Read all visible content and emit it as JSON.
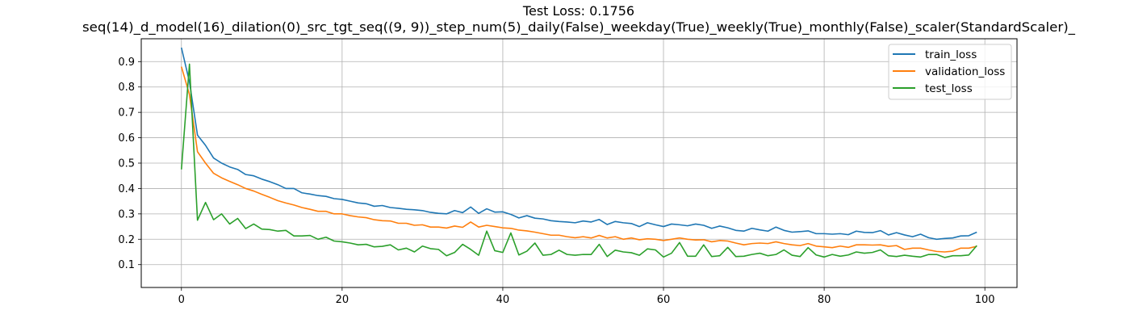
{
  "chart_data": {
    "type": "line",
    "title": "Test Loss: 0.1756",
    "subtitle": "seq(14)_d_model(16)_dilation(0)_src_tgt_seq((9, 9))_step_num(5)_daily(False)_weekday(True)_weekly(True)_monthly(False)_scaler(StandardScaler)_",
    "xlabel": "",
    "ylabel": "",
    "xlim": [
      -5,
      104
    ],
    "ylim": [
      0.01,
      0.99
    ],
    "xticks": [
      0,
      20,
      40,
      60,
      80,
      100
    ],
    "yticks": [
      0.1,
      0.2,
      0.3,
      0.4,
      0.5,
      0.6,
      0.7,
      0.8,
      0.9
    ],
    "grid": true,
    "legend_position": "top-right",
    "series": [
      {
        "name": "train_loss",
        "color": "#1f77b4",
        "values": [
          0.955,
          0.82,
          0.61,
          0.57,
          0.52,
          0.5,
          0.485,
          0.475,
          0.455,
          0.45,
          0.437,
          0.427,
          0.415,
          0.4,
          0.4,
          0.383,
          0.378,
          0.372,
          0.369,
          0.36,
          0.357,
          0.35,
          0.343,
          0.34,
          0.33,
          0.333,
          0.325,
          0.322,
          0.318,
          0.316,
          0.313,
          0.306,
          0.302,
          0.3,
          0.313,
          0.305,
          0.327,
          0.302,
          0.32,
          0.307,
          0.308,
          0.298,
          0.284,
          0.293,
          0.283,
          0.28,
          0.273,
          0.27,
          0.268,
          0.265,
          0.272,
          0.268,
          0.278,
          0.258,
          0.27,
          0.265,
          0.262,
          0.25,
          0.265,
          0.257,
          0.25,
          0.26,
          0.257,
          0.253,
          0.26,
          0.255,
          0.243,
          0.252,
          0.245,
          0.235,
          0.232,
          0.243,
          0.237,
          0.232,
          0.248,
          0.235,
          0.228,
          0.23,
          0.233,
          0.222,
          0.222,
          0.22,
          0.222,
          0.218,
          0.232,
          0.227,
          0.226,
          0.234,
          0.217,
          0.226,
          0.217,
          0.21,
          0.22,
          0.206,
          0.2,
          0.203,
          0.205,
          0.213,
          0.214,
          0.228
        ]
      },
      {
        "name": "validation_loss",
        "color": "#ff7f0e",
        "values": [
          0.88,
          0.77,
          0.545,
          0.5,
          0.46,
          0.442,
          0.428,
          0.415,
          0.4,
          0.39,
          0.377,
          0.365,
          0.352,
          0.343,
          0.335,
          0.325,
          0.318,
          0.31,
          0.31,
          0.3,
          0.3,
          0.293,
          0.288,
          0.285,
          0.277,
          0.273,
          0.272,
          0.263,
          0.263,
          0.255,
          0.257,
          0.248,
          0.248,
          0.244,
          0.252,
          0.247,
          0.268,
          0.248,
          0.255,
          0.25,
          0.245,
          0.243,
          0.236,
          0.233,
          0.228,
          0.222,
          0.216,
          0.216,
          0.21,
          0.206,
          0.21,
          0.205,
          0.215,
          0.205,
          0.21,
          0.2,
          0.205,
          0.198,
          0.202,
          0.2,
          0.195,
          0.2,
          0.205,
          0.2,
          0.197,
          0.198,
          0.19,
          0.195,
          0.193,
          0.185,
          0.178,
          0.183,
          0.185,
          0.183,
          0.19,
          0.183,
          0.178,
          0.175,
          0.183,
          0.173,
          0.17,
          0.167,
          0.173,
          0.168,
          0.178,
          0.178,
          0.177,
          0.178,
          0.172,
          0.175,
          0.16,
          0.165,
          0.165,
          0.158,
          0.152,
          0.15,
          0.153,
          0.165,
          0.165,
          0.172
        ]
      },
      {
        "name": "test_loss",
        "color": "#2ca02c",
        "values": [
          0.475,
          0.89,
          0.275,
          0.345,
          0.277,
          0.3,
          0.26,
          0.282,
          0.242,
          0.26,
          0.24,
          0.238,
          0.232,
          0.235,
          0.213,
          0.213,
          0.215,
          0.2,
          0.208,
          0.193,
          0.19,
          0.185,
          0.178,
          0.18,
          0.17,
          0.172,
          0.178,
          0.158,
          0.165,
          0.15,
          0.173,
          0.163,
          0.16,
          0.135,
          0.148,
          0.18,
          0.16,
          0.137,
          0.232,
          0.155,
          0.148,
          0.225,
          0.138,
          0.153,
          0.185,
          0.137,
          0.14,
          0.157,
          0.14,
          0.137,
          0.14,
          0.14,
          0.18,
          0.132,
          0.157,
          0.15,
          0.147,
          0.137,
          0.162,
          0.158,
          0.13,
          0.145,
          0.187,
          0.133,
          0.133,
          0.178,
          0.132,
          0.135,
          0.168,
          0.132,
          0.133,
          0.14,
          0.145,
          0.135,
          0.14,
          0.158,
          0.137,
          0.132,
          0.167,
          0.138,
          0.13,
          0.14,
          0.133,
          0.138,
          0.15,
          0.145,
          0.148,
          0.158,
          0.135,
          0.132,
          0.137,
          0.133,
          0.13,
          0.14,
          0.14,
          0.128,
          0.135,
          0.135,
          0.138,
          0.175
        ]
      }
    ]
  }
}
